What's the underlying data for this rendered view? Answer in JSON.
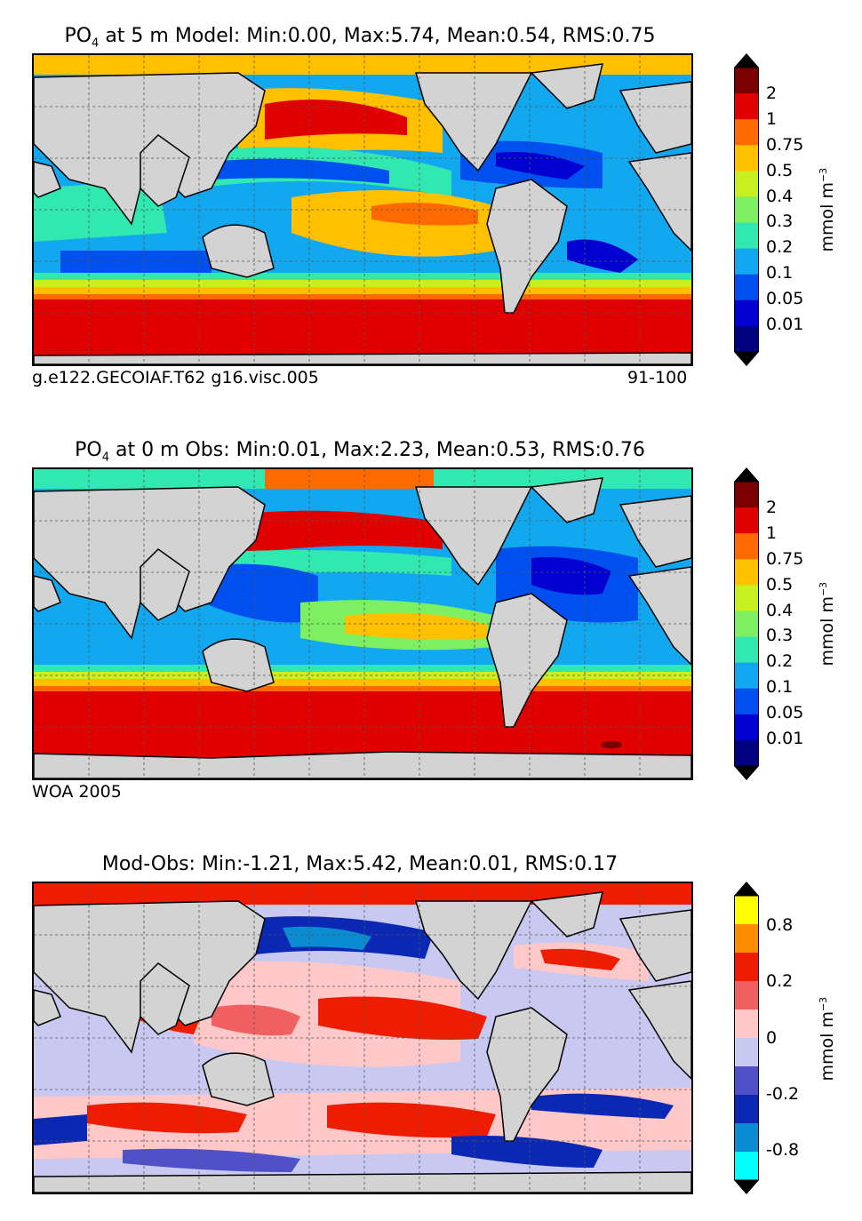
{
  "panels": [
    {
      "title_pre": "PO",
      "title_sub": "4",
      "title_post": " at 5 m Model: Min:0.00, Max:5.74, Mean:0.54, RMS:0.75",
      "footer_left": "g.e122.GECOIAF.T62 g16.visc.005",
      "footer_right": "91-100",
      "colorbar_ticks": [
        "2",
        "1",
        "0.75",
        "0.5",
        "0.4",
        "0.3",
        "0.2",
        "0.1",
        "0.05",
        "0.01"
      ],
      "colorbar_colors": [
        "#7a0000",
        "#e00000",
        "#ff6a00",
        "#ffc000",
        "#c8f020",
        "#7cf060",
        "#30e8b0",
        "#12a8f0",
        "#0050f0",
        "#0000d0",
        "#000080"
      ],
      "unit_label": "mmol m",
      "unit_sup": "−3"
    },
    {
      "title_pre": "PO",
      "title_sub": "4",
      "title_post": " at 0 m Obs: Min:0.01, Max:2.23, Mean:0.53, RMS:0.76",
      "footer_left": "WOA 2005",
      "footer_right": "",
      "colorbar_ticks": [
        "2",
        "1",
        "0.75",
        "0.5",
        "0.4",
        "0.3",
        "0.2",
        "0.1",
        "0.05",
        "0.01"
      ],
      "colorbar_colors": [
        "#7a0000",
        "#e00000",
        "#ff6a00",
        "#ffc000",
        "#c8f020",
        "#7cf060",
        "#30e8b0",
        "#12a8f0",
        "#0050f0",
        "#0000d0",
        "#000080"
      ],
      "unit_label": "mmol m",
      "unit_sup": "−3"
    },
    {
      "title_pre": "",
      "title_sub": "",
      "title_post": "Mod-Obs: Min:-1.21, Max:5.42, Mean:0.01, RMS:0.17",
      "footer_left": "",
      "footer_right": "",
      "colorbar_ticks": [
        "0.8",
        "0.2",
        "0",
        "-0.2",
        "-0.8"
      ],
      "colorbar_colors": [
        "#ffff00",
        "#ff8c00",
        "#ee1c00",
        "#f06060",
        "#ffc8c8",
        "#c8c8f0",
        "#5050c8",
        "#0a28b4",
        "#0a8cd2",
        "#00ffff"
      ],
      "unit_label": "mmol m",
      "unit_sup": "−3"
    }
  ],
  "colors": {
    "land": "#d3d3d3",
    "coastline": "#000000"
  }
}
